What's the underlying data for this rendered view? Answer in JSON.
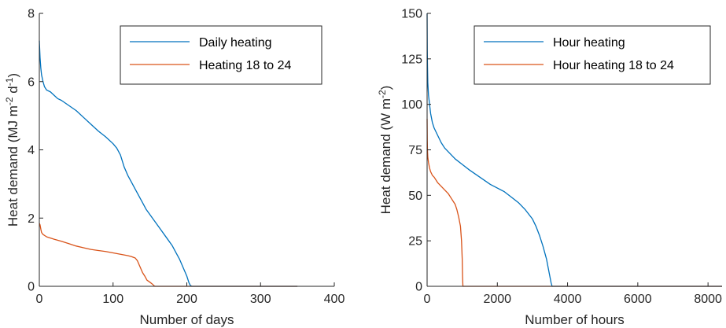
{
  "colors": {
    "series1": "#0072BD",
    "series2": "#D95319",
    "axis": "#262626",
    "legend_border": "#262626"
  },
  "chart_data": [
    {
      "type": "line",
      "xlabel": "Number of days",
      "ylabel": "Heat demand (MJ m",
      "ylabel_sup1": "-2",
      "ylabel_mid": " d",
      "ylabel_sup2": "-1",
      "ylabel_end": ")",
      "xlim": [
        0,
        400
      ],
      "ylim": [
        0,
        8
      ],
      "xticks": [
        0,
        100,
        200,
        300,
        400
      ],
      "yticks": [
        0,
        2,
        4,
        6,
        8
      ],
      "grid": false,
      "legend": "top-right",
      "series": [
        {
          "name": "Daily heating",
          "color_key": "series1",
          "x": [
            0,
            1,
            2,
            3,
            5,
            7,
            10,
            15,
            20,
            25,
            30,
            40,
            50,
            60,
            70,
            80,
            90,
            100,
            105,
            110,
            115,
            120,
            125,
            130,
            135,
            140,
            145,
            150,
            155,
            160,
            165,
            170,
            175,
            180,
            185,
            190,
            195,
            200,
            203,
            205,
            207,
            210,
            220,
            350
          ],
          "y": [
            7.2,
            6.7,
            6.4,
            6.2,
            6.0,
            5.85,
            5.75,
            5.7,
            5.6,
            5.5,
            5.45,
            5.3,
            5.15,
            4.95,
            4.75,
            4.55,
            4.38,
            4.18,
            4.05,
            3.85,
            3.5,
            3.25,
            3.05,
            2.85,
            2.65,
            2.45,
            2.25,
            2.1,
            1.95,
            1.8,
            1.65,
            1.5,
            1.35,
            1.2,
            1.0,
            0.8,
            0.55,
            0.3,
            0.1,
            0.02,
            0,
            0,
            0,
            0
          ]
        },
        {
          "name": "Heating 18 to 24",
          "color_key": "series2",
          "x": [
            0,
            1,
            2,
            3,
            5,
            10,
            20,
            30,
            40,
            50,
            60,
            70,
            80,
            90,
            100,
            110,
            120,
            125,
            130,
            133,
            136,
            140,
            143,
            146,
            150,
            153,
            155,
            156,
            157,
            160,
            200,
            350
          ],
          "y": [
            1.85,
            1.8,
            1.68,
            1.58,
            1.52,
            1.45,
            1.38,
            1.32,
            1.25,
            1.18,
            1.13,
            1.08,
            1.05,
            1.02,
            0.98,
            0.94,
            0.9,
            0.87,
            0.83,
            0.75,
            0.6,
            0.4,
            0.3,
            0.18,
            0.12,
            0.07,
            0.03,
            0.01,
            0,
            0,
            0,
            0
          ]
        }
      ]
    },
    {
      "type": "line",
      "xlabel": "Number of hours",
      "ylabel": "Heat demand (W m",
      "ylabel_sup1": "-2",
      "ylabel_mid": "",
      "ylabel_sup2": "",
      "ylabel_end": ")",
      "xlim": [
        0,
        8400
      ],
      "ylim": [
        0,
        150
      ],
      "xticks": [
        0,
        2000,
        4000,
        6000,
        8000
      ],
      "yticks": [
        0,
        25,
        50,
        75,
        100,
        125,
        150
      ],
      "grid": false,
      "legend": "top-right",
      "series": [
        {
          "name": "Hour heating",
          "color_key": "series1",
          "x": [
            0,
            5,
            10,
            20,
            40,
            70,
            100,
            150,
            200,
            300,
            400,
            500,
            600,
            800,
            1000,
            1200,
            1500,
            1800,
            2000,
            2200,
            2400,
            2600,
            2800,
            3000,
            3100,
            3200,
            3300,
            3400,
            3450,
            3500,
            3530,
            3560,
            3600,
            4000,
            8400
          ],
          "y": [
            150,
            130,
            122,
            112,
            105,
            100,
            95,
            90,
            87,
            83,
            79,
            76,
            74,
            70,
            67,
            64,
            60,
            56,
            54,
            52,
            49,
            46,
            42,
            37,
            33,
            28,
            22,
            15,
            10,
            5,
            2,
            0,
            0,
            0,
            0
          ]
        },
        {
          "name": "Hour heating 18 to 24",
          "color_key": "series2",
          "x": [
            0,
            5,
            10,
            20,
            40,
            70,
            100,
            150,
            200,
            300,
            400,
            500,
            600,
            700,
            800,
            850,
            900,
            950,
            980,
            1000,
            1010,
            1020,
            1030,
            1100,
            2000,
            8400
          ],
          "y": [
            92,
            80,
            75,
            71,
            68,
            65,
            63,
            61,
            60,
            57,
            55,
            53,
            51,
            48,
            45,
            42,
            38,
            33,
            25,
            15,
            5,
            0,
            0,
            0,
            0,
            0
          ]
        }
      ]
    }
  ]
}
